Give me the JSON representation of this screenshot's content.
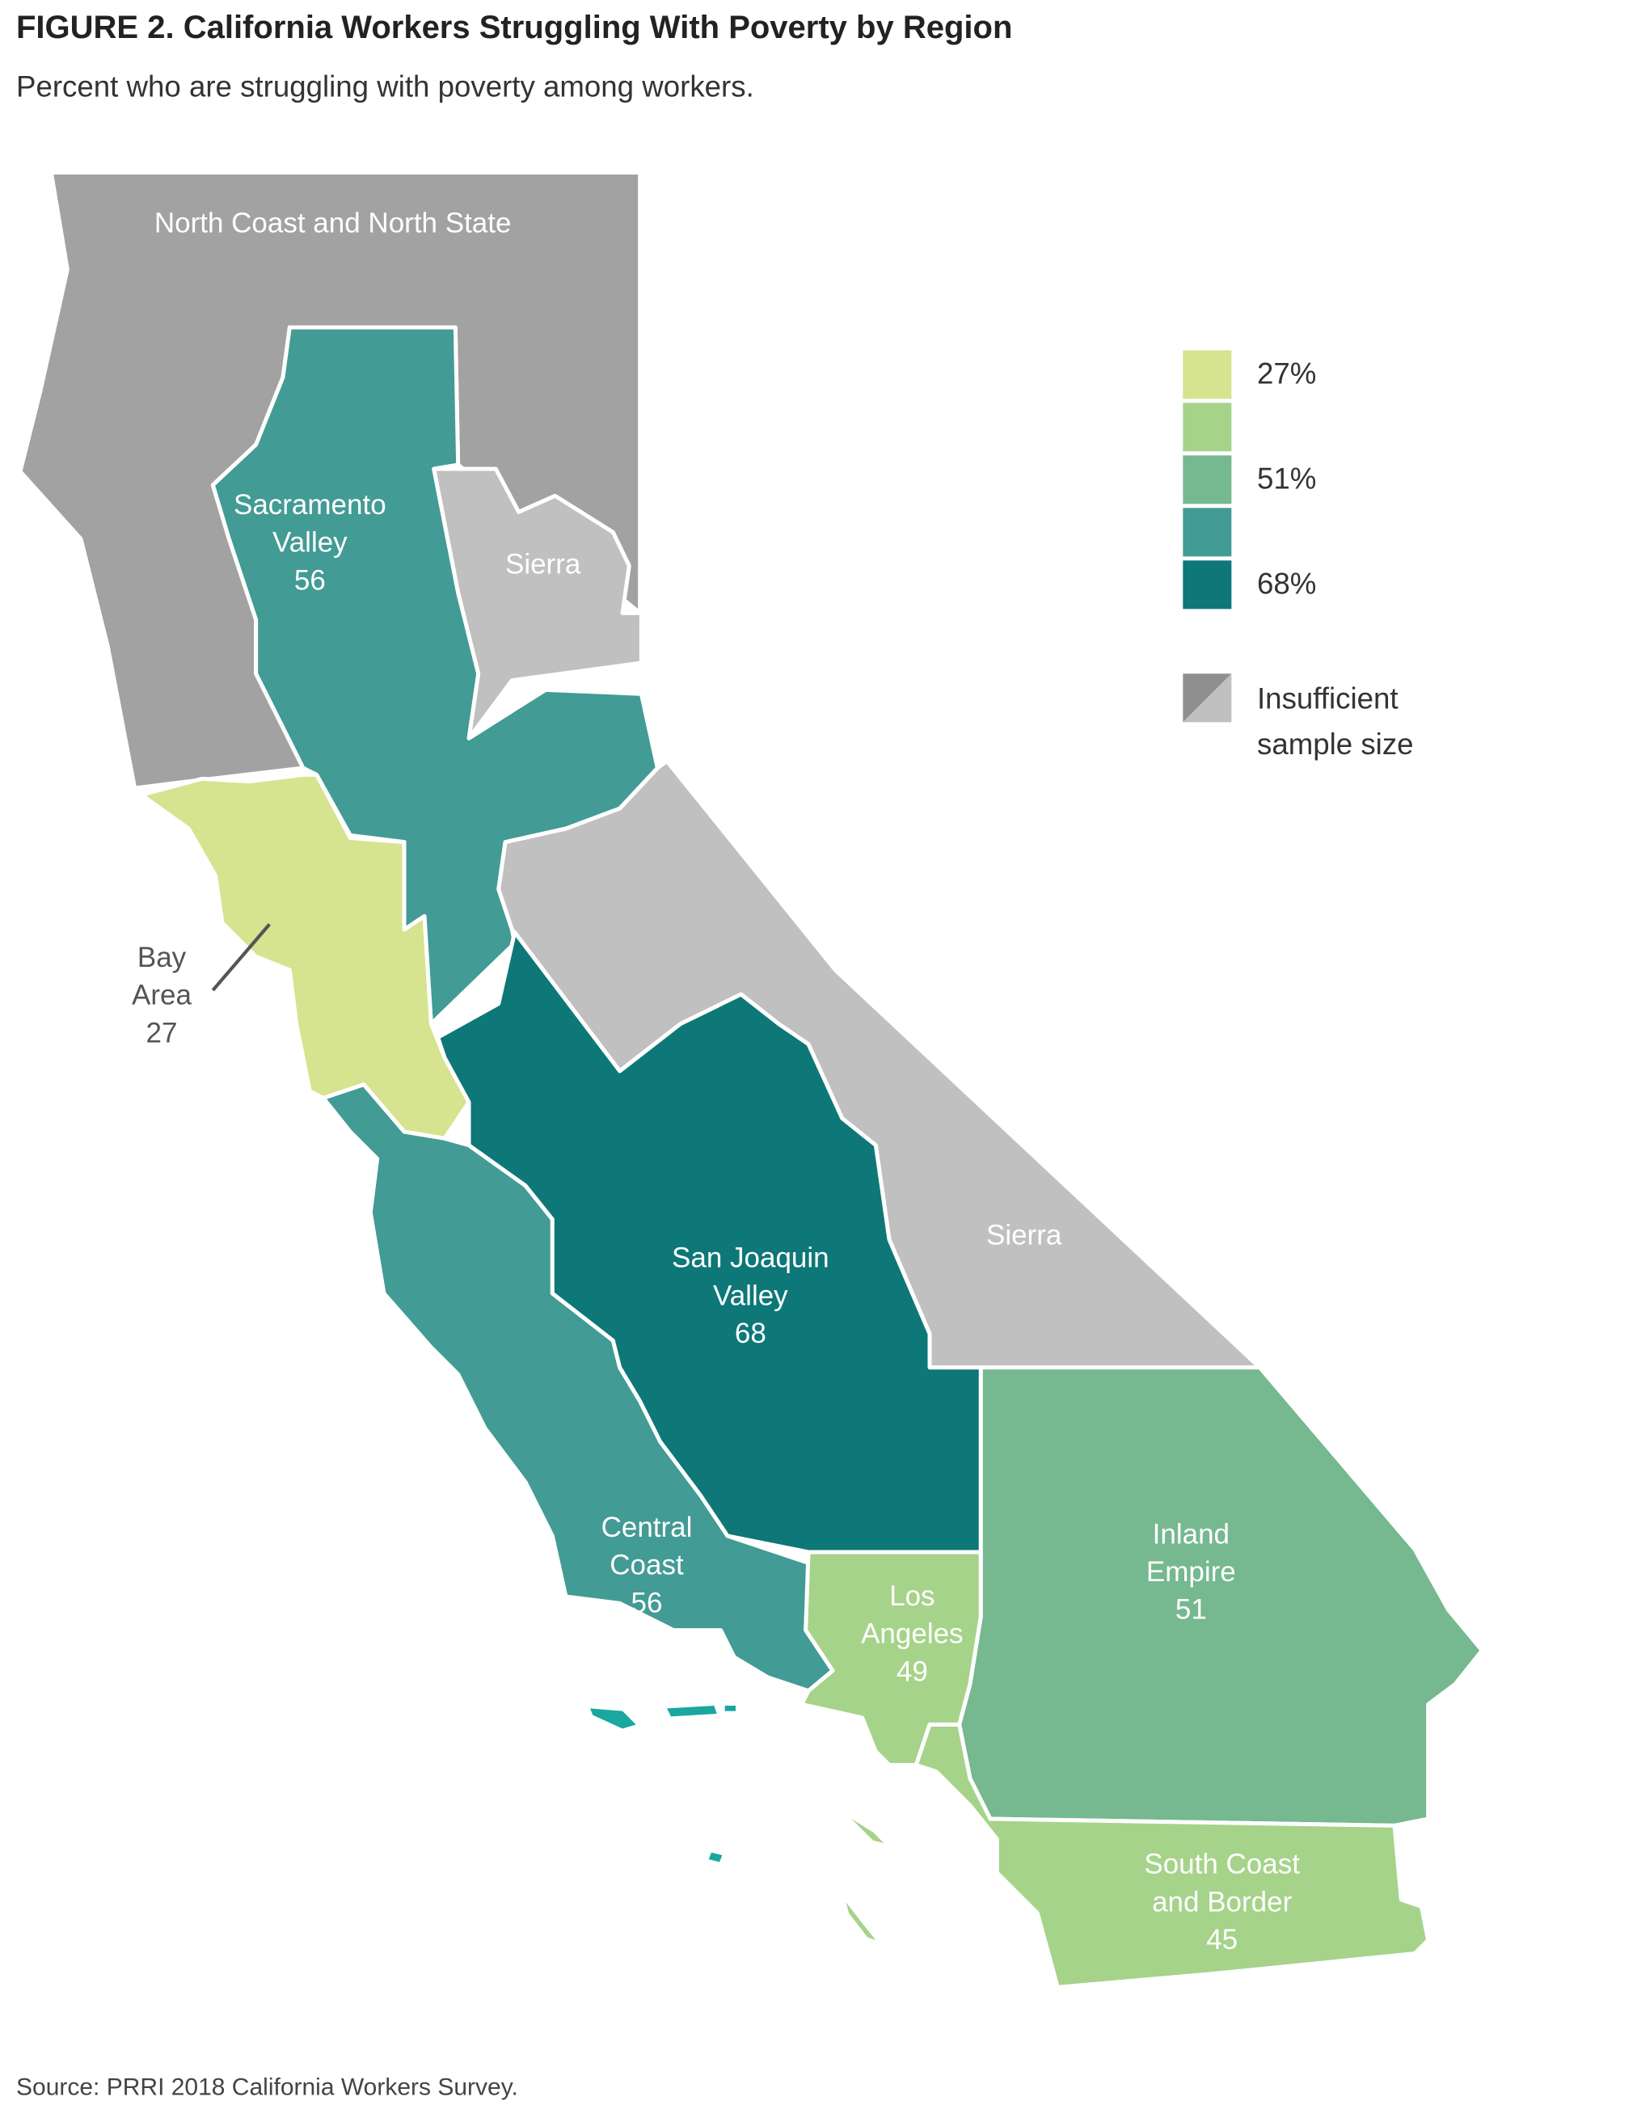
{
  "title": "FIGURE 2. California Workers Struggling With Poverty by Region",
  "subtitle": "Percent who are struggling with poverty among workers.",
  "regions": [
    {
      "name_lines": [
        "Sacramento",
        "Valley"
      ],
      "value": 56,
      "color": "#429b94"
    },
    {
      "name_lines": [
        "Bay",
        "Area"
      ],
      "value": 27,
      "color": "#d6e38f"
    },
    {
      "name_lines": [
        "Central",
        "Coast"
      ],
      "value": 56,
      "color": "#429b94"
    },
    {
      "name_lines": [
        "San Joaquin",
        "Valley"
      ],
      "value": 68,
      "color": "#0e7777"
    },
    {
      "name_lines": [
        "Los",
        "Angeles"
      ],
      "value": 49,
      "color": "#a6d38a"
    },
    {
      "name_lines": [
        "Inland",
        "Empire"
      ],
      "value": 51,
      "color": "#76b88f"
    },
    {
      "name_lines": [
        "South Coast",
        "and Border"
      ],
      "value": 45,
      "color": "#a6d38a"
    }
  ],
  "insufficient_regions": [
    {
      "name_lines": [
        "North Coast and North State"
      ],
      "color": "#a2a2a2"
    },
    {
      "name_lines": [
        "Sierra"
      ],
      "color": "#c0c0c0"
    },
    {
      "name_lines": [
        "Sierra"
      ],
      "color": "#c0c0c0"
    }
  ],
  "legend": {
    "colors": [
      "#d6e38f",
      "#a6d38a",
      "#76b88f",
      "#429b94",
      "#0e7777"
    ],
    "labels": [
      {
        "value": 27,
        "label": "27%"
      },
      null,
      {
        "value": 51,
        "label": "51%"
      },
      null,
      {
        "value": 68,
        "label": "68%"
      }
    ],
    "insufficient_colors": [
      "#8f8f8f",
      "#c0c0c0"
    ],
    "insufficient_label_lines": [
      "Insufficient",
      "sample size"
    ]
  },
  "source": "Source: PRRI 2018 California Workers Survey."
}
